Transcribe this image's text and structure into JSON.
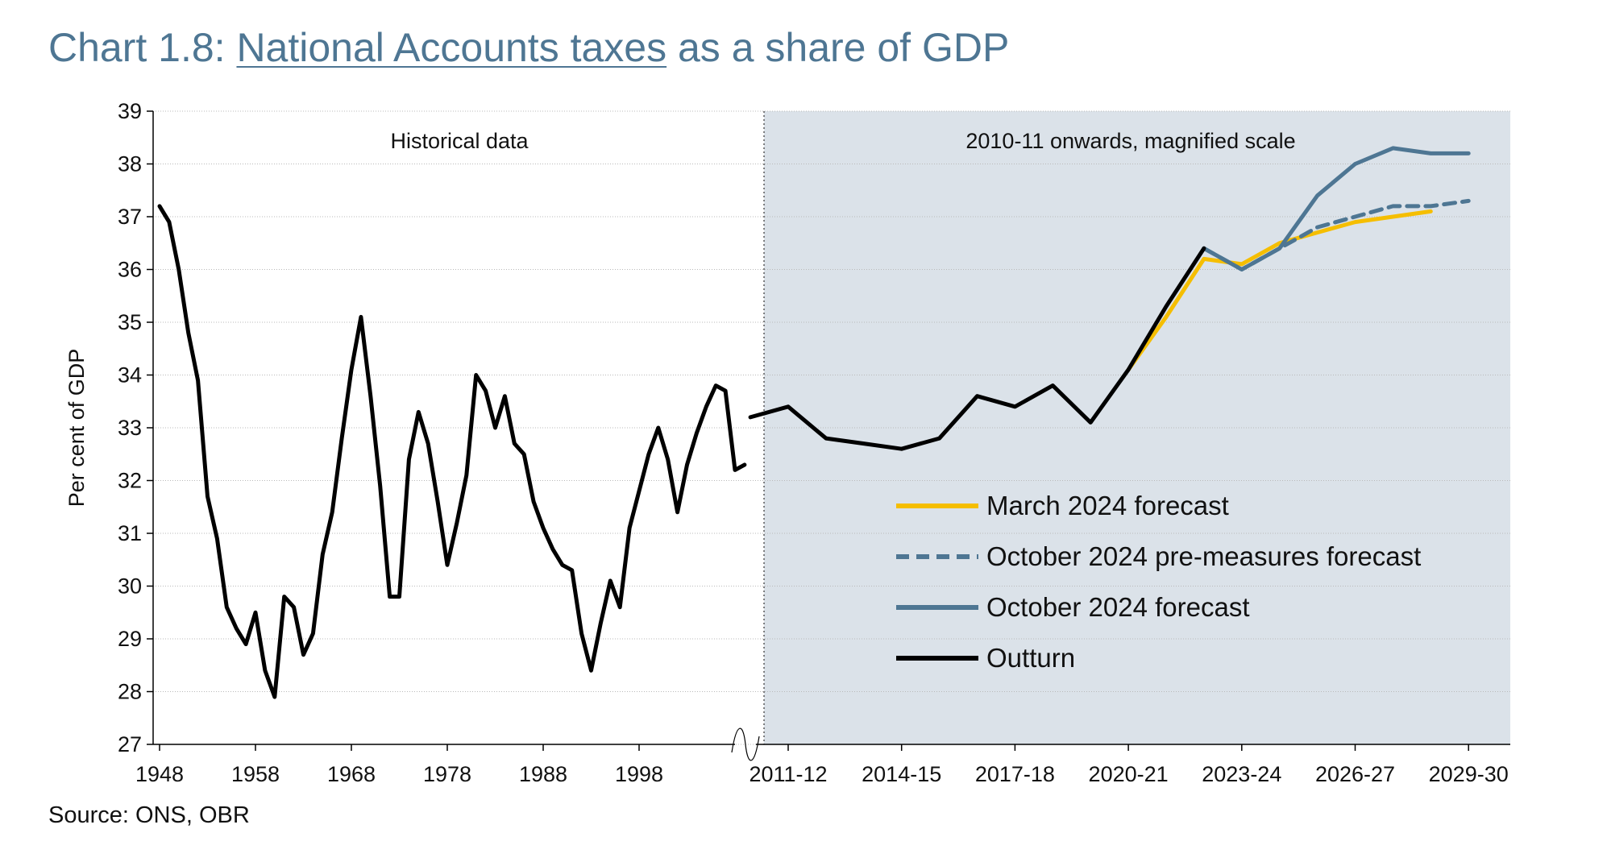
{
  "title_prefix": "Chart 1.8: ",
  "title_link": "National Accounts taxes",
  "title_suffix": " as a share of GDP",
  "source": "Source: ONS, OBR",
  "colors": {
    "title": "#4e7693",
    "outturn": "#000000",
    "march2024": "#f5be00",
    "october2024": "#4e7693",
    "october2024_pre": "#4e7693",
    "shade": "#dbe2e9"
  },
  "chart_data": {
    "type": "line",
    "title": "National Accounts taxes as a share of GDP",
    "ylabel": "Per cent of GDP",
    "ylim": [
      27,
      39
    ],
    "yticks": [
      27,
      28,
      29,
      30,
      31,
      32,
      33,
      34,
      35,
      36,
      37,
      38,
      39
    ],
    "grid": true,
    "legend_position": "bottom-right",
    "panels": {
      "historical": {
        "label": "Historical data",
        "x_type": "calendar year",
        "xlim": [
          1948,
          2009
        ],
        "xtick_labels": [
          "1948",
          "1958",
          "1968",
          "1978",
          "1988",
          "1998"
        ]
      },
      "recent": {
        "label": "2010-11 onwards, magnified scale",
        "x_type": "fiscal year",
        "xlim": [
          "2010-11",
          "2030-31"
        ],
        "xtick_labels": [
          "2011-12",
          "2014-15",
          "2017-18",
          "2020-21",
          "2023-24",
          "2026-27",
          "2029-30"
        ]
      }
    },
    "series": [
      {
        "name": "Outturn",
        "historical": {
          "x": [
            1948,
            1949,
            1950,
            1951,
            1952,
            1953,
            1954,
            1955,
            1956,
            1957,
            1958,
            1959,
            1960,
            1961,
            1962,
            1963,
            1964,
            1965,
            1966,
            1967,
            1968,
            1969,
            1970,
            1971,
            1972,
            1973,
            1974,
            1975,
            1976,
            1977,
            1978,
            1979,
            1980,
            1981,
            1982,
            1983,
            1984,
            1985,
            1986,
            1987,
            1988,
            1989,
            1990,
            1991,
            1992,
            1993,
            1994,
            1995,
            1996,
            1997,
            1998,
            1999,
            2000,
            2001,
            2002,
            2003,
            2004,
            2005,
            2006,
            2007,
            2008,
            2009
          ],
          "y": [
            37.2,
            36.9,
            36.0,
            34.8,
            33.9,
            31.7,
            30.9,
            29.6,
            29.2,
            28.9,
            29.5,
            28.4,
            27.9,
            29.8,
            29.6,
            28.7,
            29.1,
            30.6,
            31.4,
            32.8,
            34.1,
            35.1,
            33.6,
            31.9,
            29.8,
            29.8,
            32.4,
            33.3,
            32.7,
            31.6,
            30.4,
            31.2,
            32.1,
            34.0,
            33.7,
            33.0,
            33.6,
            32.7,
            32.5,
            31.6,
            31.1,
            30.7,
            30.4,
            30.3,
            29.1,
            28.4,
            29.3,
            30.1,
            29.6,
            31.1,
            31.8,
            32.5,
            33.0,
            32.4,
            31.4,
            32.3,
            32.9,
            33.4,
            33.8,
            33.7,
            32.2,
            32.3
          ]
        },
        "recent": {
          "x": [
            "2010-11",
            "2011-12",
            "2012-13",
            "2013-14",
            "2014-15",
            "2015-16",
            "2016-17",
            "2017-18",
            "2018-19",
            "2019-20",
            "2020-21",
            "2021-22",
            "2022-23"
          ],
          "y": [
            33.2,
            33.4,
            32.8,
            32.7,
            32.6,
            32.8,
            33.6,
            33.4,
            33.8,
            33.1,
            34.1,
            35.3,
            36.4
          ]
        }
      },
      {
        "name": "March 2024 forecast",
        "recent": {
          "x": [
            "2020-21",
            "2021-22",
            "2022-23",
            "2023-24",
            "2024-25",
            "2025-26",
            "2026-27",
            "2027-28",
            "2028-29"
          ],
          "y": [
            34.1,
            35.1,
            36.2,
            36.1,
            36.5,
            36.7,
            36.9,
            37.0,
            37.1
          ]
        }
      },
      {
        "name": "October 2024 pre-measures forecast",
        "recent": {
          "x": [
            "2022-23",
            "2023-24",
            "2024-25",
            "2025-26",
            "2026-27",
            "2027-28",
            "2028-29",
            "2029-30"
          ],
          "y": [
            36.4,
            36.0,
            36.4,
            36.8,
            37.0,
            37.2,
            37.2,
            37.3
          ]
        }
      },
      {
        "name": "October 2024 forecast",
        "recent": {
          "x": [
            "2022-23",
            "2023-24",
            "2024-25",
            "2025-26",
            "2026-27",
            "2027-28",
            "2028-29",
            "2029-30"
          ],
          "y": [
            36.4,
            36.0,
            36.4,
            37.4,
            38.0,
            38.3,
            38.2,
            38.2
          ]
        }
      }
    ]
  }
}
